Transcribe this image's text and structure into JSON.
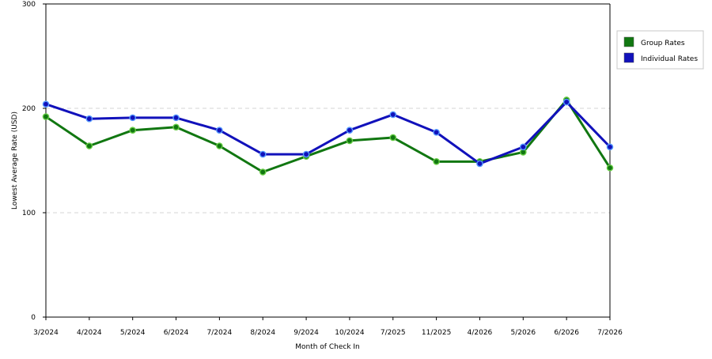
{
  "chart_data": {
    "type": "line",
    "title": "",
    "xlabel": "Month of Check In",
    "ylabel": "Lowest Average Rate (USD)",
    "ylim": [
      0,
      300
    ],
    "yticks": [
      0,
      100,
      200,
      300
    ],
    "grid": "horizontal dashed at 100 and 200",
    "legend_position": "right",
    "categories": [
      "3/2024",
      "4/2024",
      "5/2024",
      "6/2024",
      "7/2024",
      "8/2024",
      "9/2024",
      "10/2024",
      "7/2025",
      "11/2025",
      "4/2026",
      "5/2026",
      "6/2026",
      "7/2026"
    ],
    "series": [
      {
        "name": "Group Rates",
        "color": "#117711",
        "values": [
          192,
          164,
          179,
          182,
          164,
          139,
          154,
          169,
          172,
          149,
          149,
          158,
          208,
          143
        ]
      },
      {
        "name": "Individual Rates",
        "color": "#1111bb",
        "values": [
          204,
          190,
          191,
          191,
          179,
          156,
          156,
          179,
          194,
          177,
          147,
          163,
          206,
          163
        ]
      }
    ]
  }
}
